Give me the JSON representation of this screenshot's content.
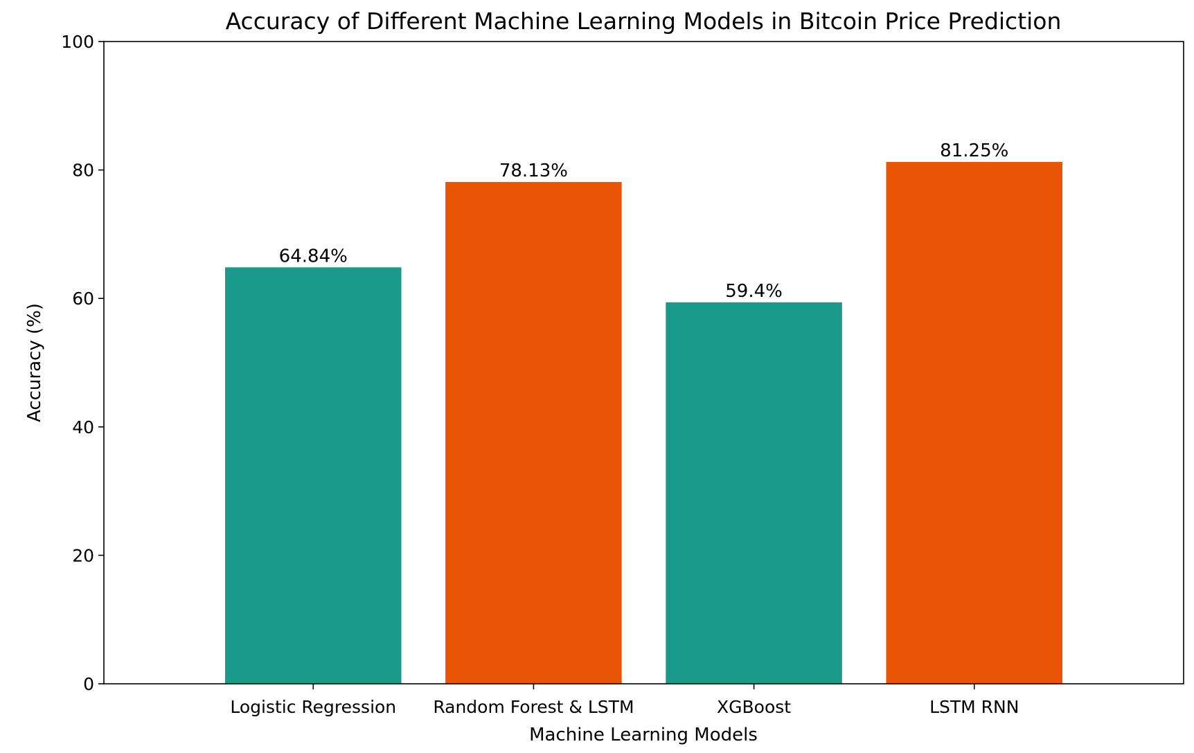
{
  "chart_data": {
    "type": "bar",
    "title": "Accuracy of Different Machine Learning Models in Bitcoin Price Prediction",
    "xlabel": "Machine Learning Models",
    "ylabel": "Accuracy (%)",
    "categories": [
      "Logistic Regression",
      "Random Forest & LSTM",
      "XGBoost",
      "LSTM RNN"
    ],
    "values": [
      64.84,
      78.13,
      59.4,
      81.25
    ],
    "value_labels": [
      "64.84%",
      "78.13%",
      "59.4%",
      "81.25%"
    ],
    "bar_colors": [
      "#1a9a8a",
      "#e95504",
      "#1a9a8a",
      "#e95504"
    ],
    "ylim": [
      0,
      100
    ],
    "yticks": [
      0,
      20,
      40,
      60,
      80,
      100
    ],
    "grid": false,
    "legend": false
  }
}
